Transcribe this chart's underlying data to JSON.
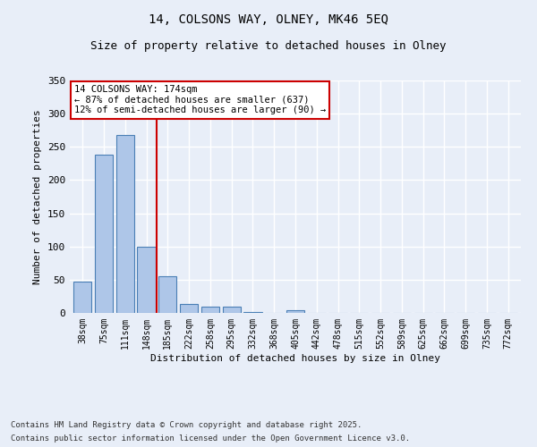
{
  "title_line1": "14, COLSONS WAY, OLNEY, MK46 5EQ",
  "title_line2": "Size of property relative to detached houses in Olney",
  "xlabel": "Distribution of detached houses by size in Olney",
  "ylabel": "Number of detached properties",
  "categories": [
    "38sqm",
    "75sqm",
    "111sqm",
    "148sqm",
    "185sqm",
    "222sqm",
    "258sqm",
    "295sqm",
    "332sqm",
    "368sqm",
    "405sqm",
    "442sqm",
    "478sqm",
    "515sqm",
    "552sqm",
    "589sqm",
    "625sqm",
    "662sqm",
    "699sqm",
    "735sqm",
    "772sqm"
  ],
  "values": [
    47,
    238,
    268,
    100,
    55,
    14,
    10,
    10,
    2,
    0,
    4,
    0,
    0,
    0,
    0,
    0,
    0,
    0,
    0,
    0,
    0
  ],
  "bar_color": "#aec6e8",
  "bar_edge_color": "#4a7fb5",
  "annotation_text": "14 COLSONS WAY: 174sqm\n← 87% of detached houses are smaller (637)\n12% of semi-detached houses are larger (90) →",
  "red_line_x": 3.5,
  "ylim": [
    0,
    350
  ],
  "yticks": [
    0,
    50,
    100,
    150,
    200,
    250,
    300,
    350
  ],
  "footnote1": "Contains HM Land Registry data © Crown copyright and database right 2025.",
  "footnote2": "Contains public sector information licensed under the Open Government Licence v3.0.",
  "background_color": "#e8eef8",
  "grid_color": "#ffffff",
  "annotation_border_color": "#cc0000"
}
